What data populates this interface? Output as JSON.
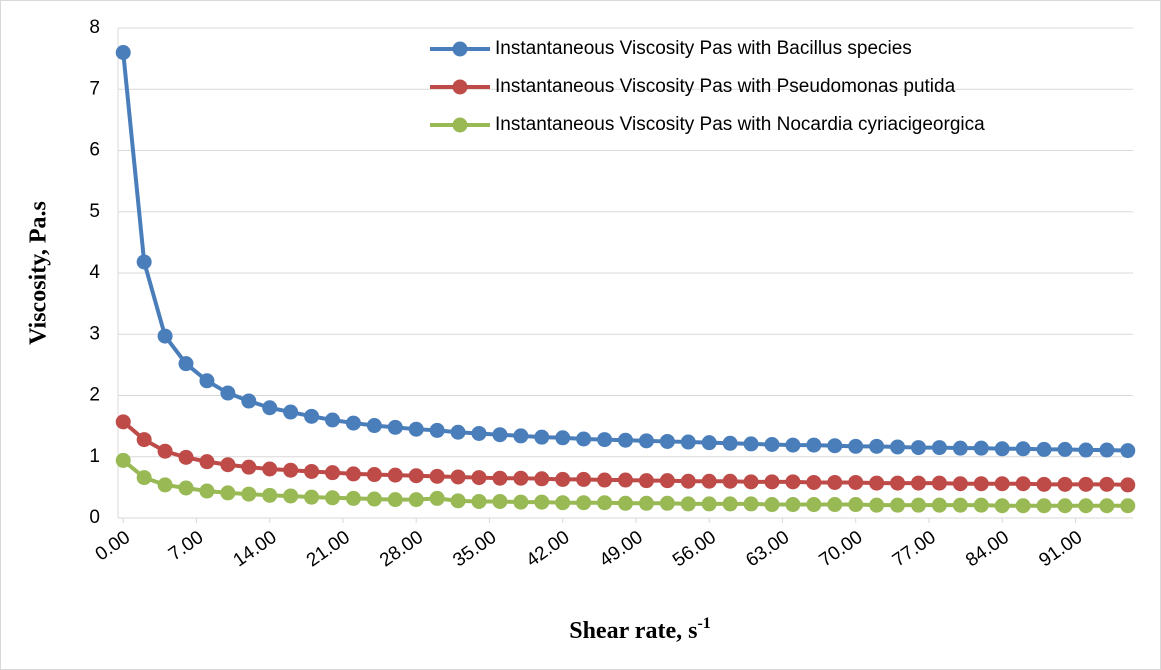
{
  "chart_data": {
    "type": "line",
    "ylabel": "Viscosity, Pa.s",
    "xlabel": "Shear rate, s",
    "xlabel_superscript": "-1",
    "x": [
      0,
      2,
      4,
      6,
      8,
      10,
      12,
      14,
      16,
      18,
      20,
      22,
      24,
      26,
      28,
      30,
      32,
      34,
      36,
      38,
      40,
      42,
      44,
      46,
      48,
      50,
      52,
      54,
      56,
      58,
      60,
      62,
      64,
      66,
      68,
      70,
      72,
      74,
      76,
      78,
      80,
      82,
      84,
      86,
      88,
      90,
      92,
      94,
      96
    ],
    "series": [
      {
        "name": "Instantaneous Viscosity Pas with Bacillus species",
        "color": "#4a7ebb",
        "values": [
          7.6,
          4.18,
          2.97,
          2.52,
          2.24,
          2.04,
          1.91,
          1.8,
          1.73,
          1.66,
          1.6,
          1.55,
          1.51,
          1.48,
          1.45,
          1.43,
          1.4,
          1.38,
          1.36,
          1.34,
          1.32,
          1.31,
          1.29,
          1.28,
          1.27,
          1.26,
          1.25,
          1.24,
          1.23,
          1.22,
          1.21,
          1.2,
          1.19,
          1.19,
          1.18,
          1.17,
          1.17,
          1.16,
          1.15,
          1.15,
          1.14,
          1.14,
          1.13,
          1.13,
          1.12,
          1.12,
          1.11,
          1.11,
          1.1
        ]
      },
      {
        "name": "Instantaneous Viscosity Pas with Pseudomonas putida",
        "color": "#be4b48",
        "values": [
          1.57,
          1.28,
          1.09,
          0.99,
          0.92,
          0.87,
          0.83,
          0.8,
          0.78,
          0.76,
          0.74,
          0.72,
          0.71,
          0.7,
          0.69,
          0.68,
          0.67,
          0.66,
          0.65,
          0.65,
          0.64,
          0.63,
          0.63,
          0.62,
          0.62,
          0.61,
          0.61,
          0.6,
          0.6,
          0.6,
          0.59,
          0.59,
          0.59,
          0.58,
          0.58,
          0.58,
          0.57,
          0.57,
          0.57,
          0.57,
          0.56,
          0.56,
          0.56,
          0.56,
          0.55,
          0.55,
          0.55,
          0.55,
          0.54
        ]
      },
      {
        "name": "Instantaneous Viscosity Pas with Nocardia cyriacigeorgica",
        "color": "#98b954",
        "values": [
          0.94,
          0.66,
          0.54,
          0.49,
          0.44,
          0.41,
          0.39,
          0.37,
          0.36,
          0.34,
          0.33,
          0.32,
          0.31,
          0.3,
          0.3,
          0.32,
          0.28,
          0.27,
          0.27,
          0.26,
          0.26,
          0.25,
          0.25,
          0.25,
          0.24,
          0.24,
          0.24,
          0.23,
          0.23,
          0.23,
          0.23,
          0.22,
          0.22,
          0.22,
          0.22,
          0.22,
          0.21,
          0.21,
          0.21,
          0.21,
          0.21,
          0.21,
          0.2,
          0.2,
          0.2,
          0.2,
          0.2,
          0.2,
          0.2
        ]
      }
    ],
    "xlim": [
      -0.5,
      96.5
    ],
    "xticks": [
      {
        "value": 0,
        "label": "0.00"
      },
      {
        "value": 7,
        "label": "7.00"
      },
      {
        "value": 14,
        "label": "14.00"
      },
      {
        "value": 21,
        "label": "21.00"
      },
      {
        "value": 28,
        "label": "28.00"
      },
      {
        "value": 35,
        "label": "35.00"
      },
      {
        "value": 42,
        "label": "42.00"
      },
      {
        "value": 49,
        "label": "49.00"
      },
      {
        "value": 56,
        "label": "56.00"
      },
      {
        "value": 63,
        "label": "63.00"
      },
      {
        "value": 70,
        "label": "70.00"
      },
      {
        "value": 77,
        "label": "77.00"
      },
      {
        "value": 84,
        "label": "84.00"
      },
      {
        "value": 91,
        "label": "91.00"
      }
    ],
    "ylim": [
      0,
      8
    ],
    "yticks": [
      0,
      1,
      2,
      3,
      4,
      5,
      6,
      7,
      8
    ],
    "grid": true,
    "legend": "upper right"
  }
}
